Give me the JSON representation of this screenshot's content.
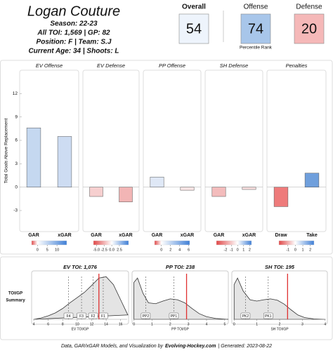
{
  "header": {
    "name": "Logan Couture",
    "lines": [
      "Season: 22-23",
      "All TOI: 1,569 | GP: 82",
      "Position: F | Team: S.J",
      "Current Age: 34 | Shoots: L"
    ]
  },
  "ratings": {
    "items": [
      {
        "label": "Overall",
        "value": 54,
        "color": "#eef4fc"
      },
      {
        "label": "Offense",
        "value": 74,
        "color": "#a8c6ea"
      },
      {
        "label": "Defense",
        "value": 20,
        "color": "#f5b8b8"
      }
    ],
    "note": "Percentile Rank"
  },
  "scale_colors": [
    "#e04848",
    "#ffffff",
    "#3f7fd6"
  ],
  "chart_data": [
    {
      "type": "bar",
      "title": "EV Offense",
      "categories": [
        "GAR",
        "xGAR"
      ],
      "values": [
        7.6,
        6.5
      ],
      "colors": [
        "#c5d8f0",
        "#cddcf2"
      ],
      "ylim": [
        -5.7,
        15
      ],
      "yticks": [
        -3,
        0,
        3,
        6,
        9,
        12
      ],
      "ylabel": "Total Goals Above Replacement",
      "colorbar": {
        "lim": [
          -3,
          15
        ],
        "ticks": [
          0,
          5,
          10
        ]
      }
    },
    {
      "type": "bar",
      "title": "EV Defense",
      "categories": [
        "GAR",
        "xGAR"
      ],
      "values": [
        -1.2,
        -1.9
      ],
      "colors": [
        "#f6cfcf",
        "#f2b5b5"
      ],
      "colorbar": {
        "lim": [
          -6,
          5.5
        ],
        "ticks": [
          {
            "value": -5,
            "label": "-5.0"
          },
          -2.5,
          {
            "value": 0,
            "label": "0.0"
          },
          2.5
        ]
      }
    },
    {
      "type": "bar",
      "title": "PP Offense",
      "categories": [
        "GAR",
        "xGAR"
      ],
      "values": [
        1.3,
        -0.4
      ],
      "colors": [
        "#dfe8f6",
        "#f9e4e4"
      ],
      "colorbar": {
        "lim": [
          -1.5,
          6.2
        ],
        "ticks": [
          0,
          2,
          4,
          6
        ]
      }
    },
    {
      "type": "bar",
      "title": "SH Defense",
      "categories": [
        "GAR",
        "xGAR"
      ],
      "values": [
        -1.2,
        -0.3
      ],
      "colors": [
        "#f3bcbc",
        "#f8dede"
      ],
      "colorbar": {
        "lim": [
          -3.5,
          2.3
        ],
        "ticks": [
          -2,
          -1,
          0,
          1,
          2
        ]
      }
    },
    {
      "type": "bar",
      "title": "Penalties",
      "categories": [
        "Draw",
        "Take"
      ],
      "values": [
        -2.5,
        1.8
      ],
      "colors": [
        "#ee7b7b",
        "#6f9fdc"
      ],
      "colorbar": {
        "lim": [
          -2.2,
          2.5
        ],
        "ticks": [
          -1,
          0,
          1,
          2
        ]
      }
    },
    {
      "type": "density",
      "title": "EV TOI: 1,076",
      "xlabel": "EV TOI/GP",
      "xlim": [
        3.7,
        17.1
      ],
      "xticks": [
        4,
        6,
        8,
        10,
        12,
        14,
        16
      ],
      "ylim": [
        0,
        1.05
      ],
      "x": [
        4,
        5,
        6,
        7,
        8,
        9,
        10,
        11,
        12,
        13,
        14,
        15,
        16,
        17
      ],
      "density": [
        0,
        0.03,
        0.08,
        0.15,
        0.25,
        0.38,
        0.5,
        0.62,
        0.78,
        0.95,
        0.98,
        0.8,
        0.45,
        0.1
      ],
      "reference_lines": [
        {
          "label": "F4",
          "value": 8.8
        },
        {
          "label": "F3",
          "value": 10.6
        },
        {
          "label": "F2",
          "value": 12.2
        },
        {
          "label": "F1",
          "value": 13.6
        }
      ],
      "player_value": 13.0
    },
    {
      "type": "density",
      "title": "PP TOI: 238",
      "xlabel": "PP TOI/GP",
      "xlim": [
        -0.1,
        5.2
      ],
      "xticks": [
        0,
        1,
        2,
        3,
        4,
        5
      ],
      "ylim": [
        0,
        1.05
      ],
      "x": [
        0,
        0,
        0.2,
        0.5,
        0.8,
        1.2,
        1.6,
        2,
        2.4,
        2.8,
        3.2,
        3.6,
        4,
        4.5,
        5.2
      ],
      "density": [
        0,
        0.85,
        0.95,
        0.6,
        0.38,
        0.36,
        0.42,
        0.47,
        0.45,
        0.38,
        0.25,
        0.13,
        0.06,
        0.02,
        0
      ],
      "reference_lines": [
        {
          "label": "PP2",
          "value": 0.65
        },
        {
          "label": "PP1",
          "value": 2.2
        }
      ],
      "player_value": 2.9
    },
    {
      "type": "density",
      "title": "SH TOI: 195",
      "xlabel": "SH TOI/GP",
      "xlim": [
        -0.1,
        4.1
      ],
      "xticks": [
        0,
        1,
        2,
        3,
        4
      ],
      "ylim": [
        0,
        1.05
      ],
      "x": [
        0,
        0,
        0.15,
        0.4,
        0.7,
        1,
        1.3,
        1.6,
        1.9,
        2.2,
        2.5,
        2.8,
        3.1,
        3.5,
        4
      ],
      "density": [
        0,
        0.8,
        0.95,
        0.65,
        0.45,
        0.42,
        0.45,
        0.47,
        0.44,
        0.35,
        0.22,
        0.1,
        0.04,
        0.01,
        0
      ],
      "reference_lines": [
        {
          "label": "PK2",
          "value": 0.5
        },
        {
          "label": "PK1",
          "value": 1.5
        }
      ],
      "player_value": 2.35
    }
  ],
  "density_label": [
    "TOI/GP",
    "Summary"
  ],
  "footer": {
    "credit": "Data, GAR/xGAR Models, and Visualization by",
    "site": "Evolving-Hockey.com",
    "generated": "| Generated: 2023-08-22"
  }
}
